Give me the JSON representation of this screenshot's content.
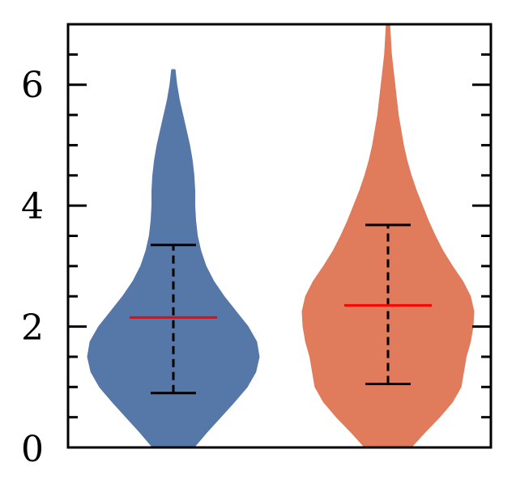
{
  "chart_data": {
    "type": "violin",
    "title": "",
    "xlabel": "",
    "ylabel": "",
    "ylim": [
      0,
      7
    ],
    "y_ticks_major": [
      0,
      2,
      4,
      6
    ],
    "y_tick_labels": [
      "0",
      "2",
      "4",
      "6"
    ],
    "y_ticks_minor": [
      0.5,
      1,
      1.5,
      2.5,
      3,
      3.5,
      4.5,
      5,
      5.5,
      6.5
    ],
    "ticks_mirrored_right": true,
    "grid": false,
    "legend": "none",
    "mean_line_color": "#ff0000",
    "whisker_color": "#000000",
    "violins": [
      {
        "color": "#5578a8",
        "mean": 2.15,
        "whisker_low": 0.9,
        "whisker_high": 3.35,
        "ymin": 0.0,
        "ymax": 6.25,
        "profile": [
          [
            0.0,
            0.24
          ],
          [
            0.25,
            0.39
          ],
          [
            0.5,
            0.55
          ],
          [
            0.75,
            0.71
          ],
          [
            1.0,
            0.86
          ],
          [
            1.25,
            0.96
          ],
          [
            1.5,
            1.0
          ],
          [
            1.75,
            0.97
          ],
          [
            2.0,
            0.87
          ],
          [
            2.25,
            0.73
          ],
          [
            2.5,
            0.59
          ],
          [
            2.75,
            0.47
          ],
          [
            3.0,
            0.38
          ],
          [
            3.25,
            0.32
          ],
          [
            3.5,
            0.28
          ],
          [
            3.75,
            0.26
          ],
          [
            4.0,
            0.25
          ],
          [
            4.25,
            0.25
          ],
          [
            4.5,
            0.24
          ],
          [
            4.75,
            0.22
          ],
          [
            5.0,
            0.19
          ],
          [
            5.25,
            0.15
          ],
          [
            5.5,
            0.11
          ],
          [
            5.75,
            0.07
          ],
          [
            6.0,
            0.04
          ],
          [
            6.25,
            0.02
          ]
        ]
      },
      {
        "color": "#e07b5b",
        "mean": 2.35,
        "whisker_low": 1.05,
        "whisker_high": 3.68,
        "ymin": 0.0,
        "ymax": 7.0,
        "profile": [
          [
            0.0,
            0.27
          ],
          [
            0.25,
            0.43
          ],
          [
            0.5,
            0.6
          ],
          [
            0.75,
            0.75
          ],
          [
            1.0,
            0.85
          ],
          [
            1.25,
            0.88
          ],
          [
            1.5,
            0.91
          ],
          [
            1.75,
            0.96
          ],
          [
            2.0,
            0.99
          ],
          [
            2.25,
            1.0
          ],
          [
            2.5,
            0.96
          ],
          [
            2.75,
            0.87
          ],
          [
            3.0,
            0.75
          ],
          [
            3.25,
            0.64
          ],
          [
            3.5,
            0.55
          ],
          [
            3.75,
            0.47
          ],
          [
            4.0,
            0.4
          ],
          [
            4.25,
            0.33
          ],
          [
            4.5,
            0.27
          ],
          [
            4.75,
            0.22
          ],
          [
            5.0,
            0.18
          ],
          [
            5.25,
            0.15
          ],
          [
            5.5,
            0.12
          ],
          [
            5.75,
            0.1
          ],
          [
            6.0,
            0.08
          ],
          [
            6.5,
            0.04
          ],
          [
            7.0,
            0.02
          ]
        ]
      }
    ]
  }
}
